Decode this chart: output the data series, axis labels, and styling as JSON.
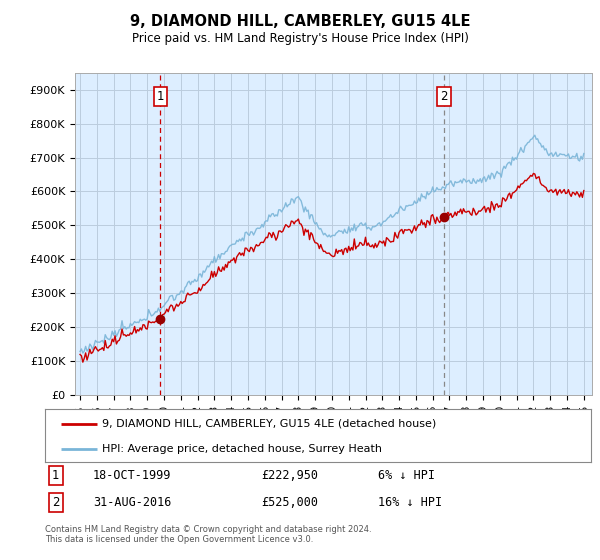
{
  "title": "9, DIAMOND HILL, CAMBERLEY, GU15 4LE",
  "subtitle": "Price paid vs. HM Land Registry's House Price Index (HPI)",
  "ylabel_ticks": [
    "£0",
    "£100K",
    "£200K",
    "£300K",
    "£400K",
    "£500K",
    "£600K",
    "£700K",
    "£800K",
    "£900K"
  ],
  "ytick_vals": [
    0,
    100000,
    200000,
    300000,
    400000,
    500000,
    600000,
    700000,
    800000,
    900000
  ],
  "ylim": [
    0,
    950000
  ],
  "xlim_start": 1994.7,
  "xlim_end": 2025.5,
  "sale1_x": 1999.79,
  "sale1_y": 222950,
  "sale1_label": "1",
  "sale1_date": "18-OCT-1999",
  "sale1_price": "£222,950",
  "sale1_note": "6% ↓ HPI",
  "sale2_x": 2016.67,
  "sale2_y": 525000,
  "sale2_label": "2",
  "sale2_date": "31-AUG-2016",
  "sale2_price": "£525,000",
  "sale2_note": "16% ↓ HPI",
  "hpi_color": "#7ab5d8",
  "sale_line_color": "#cc0000",
  "vline1_color": "#cc0000",
  "vline2_color": "#888888",
  "marker_color": "#990000",
  "background_color": "#ffffff",
  "chart_bg_color": "#ddeeff",
  "grid_color": "#bbccdd",
  "legend_label_sale": "9, DIAMOND HILL, CAMBERLEY, GU15 4LE (detached house)",
  "legend_label_hpi": "HPI: Average price, detached house, Surrey Heath",
  "footnote": "Contains HM Land Registry data © Crown copyright and database right 2024.\nThis data is licensed under the Open Government Licence v3.0.",
  "xtick_years": [
    1995,
    1996,
    1997,
    1998,
    1999,
    2000,
    2001,
    2002,
    2003,
    2004,
    2005,
    2006,
    2007,
    2008,
    2009,
    2010,
    2011,
    2012,
    2013,
    2014,
    2015,
    2016,
    2017,
    2018,
    2019,
    2020,
    2021,
    2022,
    2023,
    2024,
    2025
  ]
}
